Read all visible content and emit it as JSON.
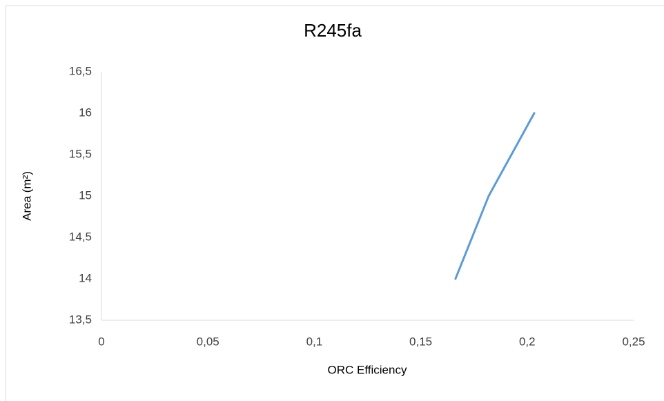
{
  "chart_data": {
    "type": "line",
    "title": "R245fa",
    "x_label": "ORC Efficiency",
    "y_label": "Area (m²)",
    "series": [
      {
        "name": "R245fa",
        "color": "#5b9bd5",
        "x": [
          0.1663,
          0.1819,
          0.2033
        ],
        "values": [
          14,
          15,
          16
        ]
      }
    ],
    "xlim": [
      0,
      0.25
    ],
    "xticks": [
      0,
      {
        "value": 0.05,
        "label": "0,05"
      },
      {
        "value": 0.1,
        "label": "0,1"
      },
      {
        "value": 0.15,
        "label": "0,15"
      },
      {
        "value": 0.2,
        "label": "0,2"
      },
      {
        "value": 0.25,
        "label": "0,25"
      }
    ],
    "ylim": [
      13.5,
      16.5
    ],
    "yticks": [
      {
        "value": 13.5,
        "label": "13,5"
      },
      14,
      {
        "value": 14.5,
        "label": "14,5"
      },
      15,
      {
        "value": 15.5,
        "label": "15,5"
      },
      16,
      {
        "value": 16.5,
        "label": "16,5"
      }
    ],
    "grid": false
  }
}
